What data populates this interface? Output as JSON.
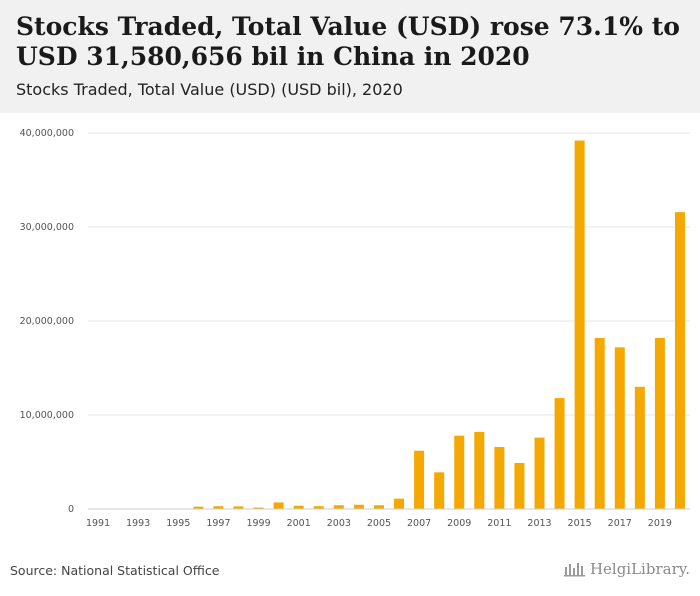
{
  "header": {
    "title": "Stocks Traded, Total Value (USD) rose 73.1% to USD 31,580,656 bil in China in 2020",
    "subtitle": "Stocks Traded, Total Value (USD) (USD bil), 2020"
  },
  "footer": {
    "source": "Source: National Statistical Office",
    "logo_text": "HelgiLibrary."
  },
  "colors": {
    "bar": "#f5a800",
    "grid": "#e6e6e6",
    "axis": "#cccccc"
  },
  "chart_data": {
    "type": "bar",
    "categories": [
      "1991",
      "1992",
      "1993",
      "1994",
      "1995",
      "1996",
      "1997",
      "1998",
      "1999",
      "2000",
      "2001",
      "2002",
      "2003",
      "2004",
      "2005",
      "2006",
      "2007",
      "2008",
      "2009",
      "2010",
      "2011",
      "2012",
      "2013",
      "2014",
      "2015",
      "2016",
      "2017",
      "2018",
      "2019",
      "2020"
    ],
    "values": [
      0,
      0,
      0,
      0,
      0,
      250000,
      300000,
      280000,
      150000,
      700000,
      350000,
      300000,
      400000,
      450000,
      400000,
      1100000,
      6200000,
      3900000,
      7800000,
      8200000,
      6600000,
      4900000,
      7600000,
      11800000,
      39200000,
      18200000,
      17200000,
      13000000,
      18200000,
      31580656
    ],
    "x_tick_labels": [
      "1991",
      "1993",
      "1995",
      "1997",
      "1999",
      "2001",
      "2003",
      "2005",
      "2007",
      "2009",
      "2011",
      "2013",
      "2015",
      "2017",
      "2019"
    ],
    "y_ticks": [
      0,
      10000000,
      20000000,
      30000000,
      40000000
    ],
    "y_tick_labels": [
      "0",
      "10,000,000",
      "20,000,000",
      "30,000,000",
      "40,000,000"
    ],
    "ylim": [
      0,
      40000000
    ],
    "xlabel": "",
    "ylabel": "",
    "grid": true
  }
}
